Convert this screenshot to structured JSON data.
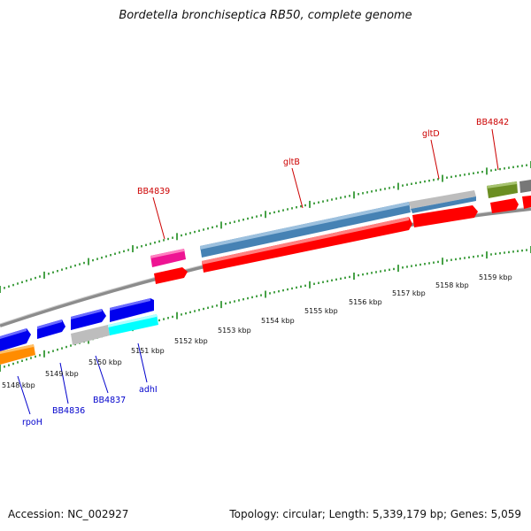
{
  "title": "Bordetella bronchiseptica RB50, complete genome",
  "footer": {
    "accession": "Accession: NC_002927",
    "summary": "Topology: circular; Length: 5,339,179 bp; Genes: 5,059"
  },
  "colors": {
    "backbone": "#8c8c8c",
    "tick": "#1a8a1a",
    "gene_label_top": "#cc0000",
    "gene_label_bottom": "#0000cc",
    "red": "#ff0000",
    "blue": "#0000ee",
    "steelblue": "#4682b4",
    "grey": "#bdbdbd",
    "cyan": "#00ffff",
    "magenta": "#ee1493",
    "olive": "#6b8e23",
    "orange": "#ff8c00"
  },
  "scale_labels": [
    "5148 kbp",
    "5149 kbp",
    "5150 kbp",
    "5151 kbp",
    "5152 kbp",
    "5153 kbp",
    "5154 kbp",
    "5155 kbp",
    "5156 kbp",
    "5157 kbp",
    "5158 kbp",
    "5159 kbp"
  ],
  "gene_labels_top": [
    "BB4839",
    "gltB",
    "gltD",
    "BB4842"
  ],
  "gene_labels_bottom": [
    "rpoH",
    "BB4836",
    "BB4837",
    "adhI"
  ]
}
